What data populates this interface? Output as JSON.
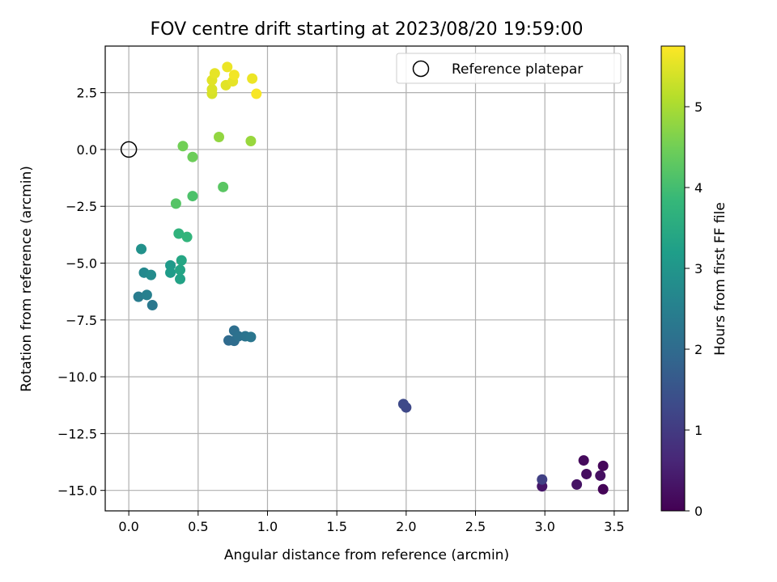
{
  "chart_data": {
    "type": "scatter",
    "title": "FOV centre drift starting at 2023/08/20 19:59:00",
    "xlabel": "Angular distance from reference (arcmin)",
    "ylabel": "Rotation from reference (arcmin)",
    "xlim": [
      -0.17,
      3.6
    ],
    "ylim": [
      -15.9,
      4.55
    ],
    "xticks": [
      0.0,
      0.5,
      1.0,
      1.5,
      2.0,
      2.5,
      3.0,
      3.5
    ],
    "xtick_labels": [
      "0.0",
      "0.5",
      "1.0",
      "1.5",
      "2.0",
      "2.5",
      "3.0",
      "3.5"
    ],
    "yticks": [
      2.5,
      0.0,
      -2.5,
      -5.0,
      -7.5,
      -10.0,
      -12.5,
      -15.0
    ],
    "ytick_labels": [
      "2.5",
      "0.0",
      "−2.5",
      "−5.0",
      "−7.5",
      "−10.0",
      "−12.5",
      "−15.0"
    ],
    "grid": true,
    "legend": {
      "position": "top-right",
      "entries": [
        {
          "label": "Reference platepar",
          "marker": "open-circle"
        }
      ]
    },
    "reference_point": {
      "x": 0.0,
      "y": 0.0
    },
    "colorbar": {
      "label": "Hours from first FF file",
      "range": [
        0,
        5.75
      ],
      "ticks": [
        0,
        1,
        2,
        3,
        4,
        5
      ],
      "tick_labels": [
        "0",
        "1",
        "2",
        "3",
        "4",
        "5"
      ],
      "colormap": "viridis",
      "colors": [
        "#440154",
        "#482878",
        "#3e4989",
        "#31688e",
        "#26828e",
        "#1f9e89",
        "#35b779",
        "#6ece58",
        "#b5de2b",
        "#fde725"
      ]
    },
    "points": [
      {
        "x": 3.42,
        "y": -14.95,
        "c": 0.05
      },
      {
        "x": 3.42,
        "y": -13.92,
        "c": 0.1
      },
      {
        "x": 3.28,
        "y": -13.68,
        "c": 0.15
      },
      {
        "x": 3.3,
        "y": -14.28,
        "c": 0.2
      },
      {
        "x": 3.4,
        "y": -14.35,
        "c": 0.25
      },
      {
        "x": 3.23,
        "y": -14.74,
        "c": 0.3
      },
      {
        "x": 2.98,
        "y": -14.82,
        "c": 0.35
      },
      {
        "x": 2.98,
        "y": -14.52,
        "c": 1.1
      },
      {
        "x": 2.0,
        "y": -11.35,
        "c": 1.25
      },
      {
        "x": 1.98,
        "y": -11.2,
        "c": 1.3
      },
      {
        "x": 0.72,
        "y": -8.4,
        "c": 2.0
      },
      {
        "x": 0.76,
        "y": -8.42,
        "c": 2.05
      },
      {
        "x": 0.76,
        "y": -7.97,
        "c": 2.1
      },
      {
        "x": 0.79,
        "y": -8.22,
        "c": 2.15
      },
      {
        "x": 0.84,
        "y": -8.22,
        "c": 2.2
      },
      {
        "x": 0.88,
        "y": -8.25,
        "c": 2.25
      },
      {
        "x": 0.17,
        "y": -6.85,
        "c": 2.3
      },
      {
        "x": 0.07,
        "y": -6.48,
        "c": 2.4
      },
      {
        "x": 0.13,
        "y": -6.4,
        "c": 2.5
      },
      {
        "x": 0.11,
        "y": -5.42,
        "c": 2.7
      },
      {
        "x": 0.16,
        "y": -5.52,
        "c": 2.75
      },
      {
        "x": 0.09,
        "y": -4.38,
        "c": 2.9
      },
      {
        "x": 0.3,
        "y": -5.1,
        "c": 3.1
      },
      {
        "x": 0.3,
        "y": -5.42,
        "c": 3.15
      },
      {
        "x": 0.37,
        "y": -5.7,
        "c": 3.3
      },
      {
        "x": 0.37,
        "y": -5.3,
        "c": 3.35
      },
      {
        "x": 0.38,
        "y": -4.88,
        "c": 3.4
      },
      {
        "x": 0.36,
        "y": -3.7,
        "c": 3.7
      },
      {
        "x": 0.42,
        "y": -3.85,
        "c": 3.75
      },
      {
        "x": 0.46,
        "y": -2.05,
        "c": 4.1
      },
      {
        "x": 0.34,
        "y": -2.38,
        "c": 4.2
      },
      {
        "x": 0.68,
        "y": -1.65,
        "c": 4.25
      },
      {
        "x": 0.46,
        "y": -0.33,
        "c": 4.45
      },
      {
        "x": 0.39,
        "y": 0.15,
        "c": 4.5
      },
      {
        "x": 0.65,
        "y": 0.55,
        "c": 4.8
      },
      {
        "x": 0.88,
        "y": 0.37,
        "c": 4.85
      },
      {
        "x": 0.6,
        "y": 2.45,
        "c": 5.4
      },
      {
        "x": 0.6,
        "y": 2.65,
        "c": 5.45
      },
      {
        "x": 0.6,
        "y": 3.05,
        "c": 5.5
      },
      {
        "x": 0.62,
        "y": 3.35,
        "c": 5.55
      },
      {
        "x": 0.7,
        "y": 2.83,
        "c": 5.5
      },
      {
        "x": 0.71,
        "y": 3.63,
        "c": 5.6
      },
      {
        "x": 0.75,
        "y": 3.0,
        "c": 5.55
      },
      {
        "x": 0.76,
        "y": 3.28,
        "c": 5.65
      },
      {
        "x": 0.89,
        "y": 3.12,
        "c": 5.6
      },
      {
        "x": 0.92,
        "y": 2.45,
        "c": 5.7
      }
    ]
  }
}
